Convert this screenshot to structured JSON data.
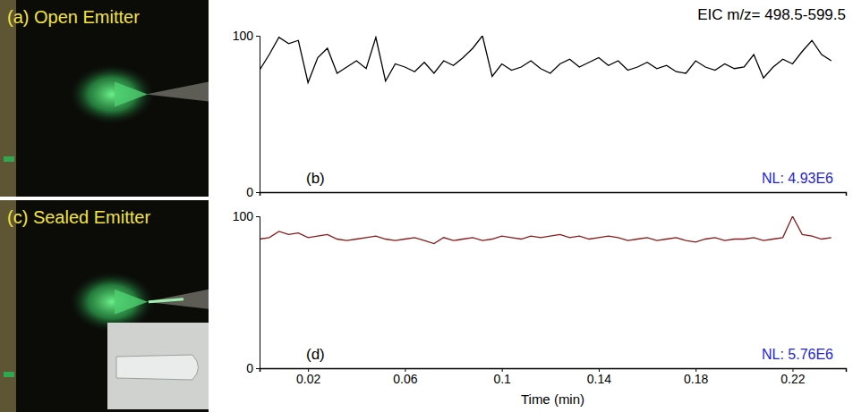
{
  "photos": [
    {
      "label": "(a) Open Emitter"
    },
    {
      "label": "(c) Sealed Emitter"
    }
  ],
  "chart_data": [
    {
      "type": "line",
      "title": "EIC m/z= 498.5-599.5",
      "panel": "(b)",
      "annotation": "NL: 4.93E6",
      "color": "#000000",
      "tick_labels": "y",
      "xlim": [
        0,
        0.242
      ],
      "ylim": [
        0,
        100
      ],
      "yticks": [
        0,
        100
      ],
      "x": [
        0,
        0.004,
        0.008,
        0.012,
        0.016,
        0.02,
        0.024,
        0.028,
        0.032,
        0.036,
        0.04,
        0.044,
        0.048,
        0.052,
        0.056,
        0.06,
        0.064,
        0.068,
        0.072,
        0.076,
        0.08,
        0.084,
        0.088,
        0.092,
        0.096,
        0.1,
        0.104,
        0.108,
        0.112,
        0.116,
        0.12,
        0.124,
        0.128,
        0.132,
        0.136,
        0.14,
        0.144,
        0.148,
        0.152,
        0.156,
        0.16,
        0.164,
        0.168,
        0.172,
        0.176,
        0.18,
        0.184,
        0.188,
        0.192,
        0.196,
        0.2,
        0.204,
        0.208,
        0.212,
        0.216,
        0.22,
        0.224,
        0.228,
        0.232,
        0.236
      ],
      "values": [
        78,
        88,
        99,
        95,
        97,
        70,
        86,
        92,
        76,
        80,
        84,
        79,
        99,
        71,
        82,
        80,
        77,
        83,
        76,
        84,
        81,
        86,
        92,
        100,
        74,
        82,
        78,
        80,
        84,
        79,
        76,
        82,
        85,
        80,
        83,
        86,
        81,
        84,
        78,
        80,
        83,
        79,
        81,
        77,
        76,
        84,
        80,
        78,
        82,
        79,
        80,
        88,
        73,
        80,
        85,
        82,
        90,
        97,
        88,
        84
      ]
    },
    {
      "type": "line",
      "panel": "(d)",
      "annotation": "NL: 5.76E6",
      "color": "#8b1a1a",
      "x_label": "Time (min)",
      "xlim": [
        0,
        0.242
      ],
      "ylim": [
        0,
        100
      ],
      "yticks": [
        0,
        100
      ],
      "xticks": [
        0.02,
        0.06,
        0.1,
        0.14,
        0.18,
        0.22
      ],
      "x": [
        0,
        0.004,
        0.008,
        0.012,
        0.016,
        0.02,
        0.024,
        0.028,
        0.032,
        0.036,
        0.04,
        0.044,
        0.048,
        0.052,
        0.056,
        0.06,
        0.064,
        0.068,
        0.072,
        0.076,
        0.08,
        0.084,
        0.088,
        0.092,
        0.096,
        0.1,
        0.104,
        0.108,
        0.112,
        0.116,
        0.12,
        0.124,
        0.128,
        0.132,
        0.136,
        0.14,
        0.144,
        0.148,
        0.152,
        0.156,
        0.16,
        0.164,
        0.168,
        0.172,
        0.176,
        0.18,
        0.184,
        0.188,
        0.192,
        0.196,
        0.2,
        0.204,
        0.208,
        0.212,
        0.216,
        0.22,
        0.224,
        0.228,
        0.232,
        0.236
      ],
      "values": [
        85,
        86,
        90,
        88,
        89,
        86,
        87,
        88,
        85,
        84,
        85,
        86,
        87,
        85,
        84,
        85,
        86,
        84,
        82,
        86,
        84,
        85,
        86,
        84,
        85,
        87,
        86,
        85,
        87,
        86,
        87,
        88,
        86,
        87,
        85,
        86,
        87,
        86,
        84,
        85,
        86,
        84,
        85,
        86,
        84,
        83,
        85,
        86,
        84,
        85,
        85,
        86,
        84,
        85,
        86,
        100,
        88,
        87,
        85,
        86
      ]
    }
  ]
}
